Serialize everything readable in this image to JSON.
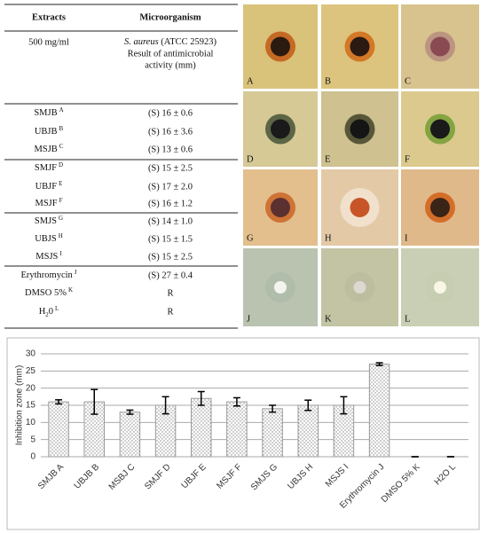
{
  "table": {
    "header": [
      "Extracts",
      "Microorganism"
    ],
    "concentration": "500 mg/ml",
    "organism": "S. aureus",
    "strain": "(ATCC 25923)",
    "result_caption": [
      "Result of antimicrobial",
      "activity (mm)"
    ],
    "rows": [
      {
        "extract": "SMJB",
        "sup": "A",
        "result": "(S) 16 ± 0.6"
      },
      {
        "extract": "UBJB",
        "sup": "B",
        "result": "(S) 16 ± 3.6"
      },
      {
        "extract": "MSJB",
        "sup": "C",
        "result": "(S) 13 ± 0.6"
      },
      {
        "extract": "SMJF",
        "sup": "D",
        "result": "(S) 15 ± 2.5"
      },
      {
        "extract": "UBJF",
        "sup": "E",
        "result": "(S) 17 ± 2.0"
      },
      {
        "extract": "MSJF",
        "sup": "F",
        "result": "(S) 16 ± 1.2"
      },
      {
        "extract": "SMJS",
        "sup": "G",
        "result": "(S) 14 ± 1.0"
      },
      {
        "extract": "UBJS",
        "sup": "H",
        "result": "(S) 15 ± 1.5"
      },
      {
        "extract": "MSJS",
        "sup": "I",
        "result": "(S) 15 ± 2.5"
      },
      {
        "extract": "Erythromycin",
        "sup": "J",
        "result": "(S) 27 ± 0.4"
      },
      {
        "extract": "DMSO 5%",
        "sup": "K",
        "result": "R"
      },
      {
        "extract": "H",
        "sub": "2",
        "extract_end": "0",
        "sup": "L",
        "result": "R"
      }
    ]
  },
  "panels": [
    "A",
    "B",
    "C",
    "D",
    "E",
    "F",
    "G",
    "H",
    "I",
    "J",
    "K",
    "L"
  ],
  "chart_data": {
    "type": "bar",
    "y_label": "Inhibition zone (mm)",
    "categories": [
      "SMJB A",
      "UBJB B",
      "MSBJ C",
      "SMJF D",
      "UBJF E",
      "MSJF F",
      "SMJS G",
      "UBJS H",
      "MSJS I",
      "Erythromycin J",
      "DMSO 5% K",
      "H2O L"
    ],
    "values": [
      16,
      16,
      13,
      15,
      17,
      16,
      14,
      15,
      15,
      27,
      0,
      0
    ],
    "errors": [
      0.6,
      3.6,
      0.6,
      2.5,
      2.0,
      1.2,
      1.0,
      1.5,
      2.5,
      0.4,
      0,
      0
    ],
    "ylim": [
      0,
      30
    ],
    "yticks": [
      0,
      5,
      10,
      15,
      20,
      25,
      30
    ],
    "grid": true
  }
}
